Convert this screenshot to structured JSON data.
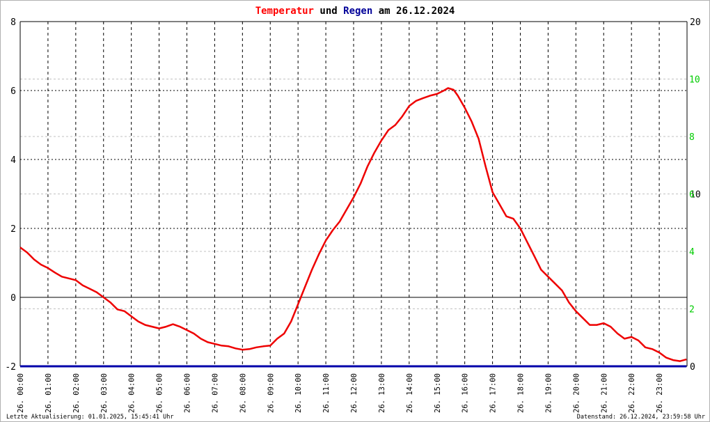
{
  "title": {
    "part1": "Temperatur",
    "part2": " und ",
    "part3": "Regen",
    "part4": " am 26.12.2024"
  },
  "colors": {
    "temperature": "#ee0000",
    "rain": "#0000aa",
    "title_temp": "#ff0000",
    "title_rain": "#000099",
    "right_axis_green": "#00cc00",
    "grid": "#000000",
    "zero_line": "#000000"
  },
  "footer": {
    "left": "Letzte Aktualisierung: 01.01.2025, 15:45:41 Uhr",
    "right": "Datenstand: 26.12.2024, 23:59:58 Uhr"
  },
  "chart_data": {
    "type": "line",
    "title": "Temperatur und Regen am 26.12.2024",
    "x_tick_labels": [
      "26. 00:00",
      "26. 01:00",
      "26. 02:00",
      "26. 03:00",
      "26. 04:00",
      "26. 05:00",
      "26. 06:00",
      "26. 07:00",
      "26. 08:00",
      "26. 09:00",
      "26. 10:00",
      "26. 11:00",
      "26. 12:00",
      "26. 13:00",
      "26. 14:00",
      "26. 15:00",
      "26. 16:00",
      "26. 17:00",
      "26. 18:00",
      "26. 19:00",
      "26. 20:00",
      "26. 21:00",
      "26. 22:00",
      "26. 23:00"
    ],
    "y_left": {
      "min": -2,
      "max": 8,
      "ticks": [
        -2,
        0,
        2,
        4,
        6,
        8
      ]
    },
    "y_right_black": {
      "min": 0,
      "max": 20,
      "ticks": [
        0,
        10,
        20
      ]
    },
    "y_right_green": {
      "min": 0,
      "max": 12,
      "ticks": [
        0,
        2,
        4,
        6,
        8,
        10
      ]
    },
    "grid": true,
    "series": [
      {
        "name": "Temperatur",
        "color": "#ee0000",
        "axis": "left",
        "x_hours": [
          0,
          0.25,
          0.5,
          0.75,
          1,
          1.25,
          1.5,
          1.75,
          2,
          2.25,
          2.5,
          2.75,
          3,
          3.25,
          3.5,
          3.75,
          4,
          4.25,
          4.5,
          4.75,
          5,
          5.25,
          5.5,
          5.75,
          6,
          6.25,
          6.5,
          6.75,
          7,
          7.25,
          7.5,
          7.75,
          8,
          8.25,
          8.5,
          8.75,
          9,
          9.25,
          9.5,
          9.75,
          10,
          10.25,
          10.5,
          10.75,
          11,
          11.25,
          11.5,
          11.75,
          12,
          12.25,
          12.5,
          12.75,
          13,
          13.25,
          13.5,
          13.75,
          14,
          14.25,
          14.5,
          14.75,
          15,
          15.25,
          15.4,
          15.6,
          15.75,
          16,
          16.25,
          16.5,
          16.75,
          17,
          17.25,
          17.5,
          17.75,
          18,
          18.25,
          18.5,
          18.75,
          19,
          19.25,
          19.5,
          19.75,
          20,
          20.25,
          20.5,
          20.75,
          21,
          21.25,
          21.5,
          21.75,
          22,
          22.25,
          22.5,
          22.75,
          23,
          23.25,
          23.5,
          23.75,
          23.98
        ],
        "values": [
          1.45,
          1.3,
          1.1,
          0.95,
          0.85,
          0.72,
          0.6,
          0.55,
          0.5,
          0.35,
          0.25,
          0.15,
          0.0,
          -0.15,
          -0.35,
          -0.4,
          -0.55,
          -0.7,
          -0.8,
          -0.85,
          -0.9,
          -0.85,
          -0.78,
          -0.85,
          -0.95,
          -1.05,
          -1.2,
          -1.3,
          -1.35,
          -1.4,
          -1.42,
          -1.48,
          -1.52,
          -1.5,
          -1.45,
          -1.42,
          -1.4,
          -1.2,
          -1.05,
          -0.7,
          -0.2,
          0.3,
          0.8,
          1.25,
          1.65,
          1.95,
          2.2,
          2.55,
          2.9,
          3.3,
          3.8,
          4.2,
          4.55,
          4.85,
          5.0,
          5.25,
          5.55,
          5.7,
          5.78,
          5.85,
          5.9,
          6.0,
          6.07,
          6.02,
          5.85,
          5.5,
          5.1,
          4.6,
          3.8,
          3.05,
          2.7,
          2.35,
          2.28,
          2.0,
          1.6,
          1.2,
          0.8,
          0.6,
          0.4,
          0.2,
          -0.15,
          -0.4,
          -0.6,
          -0.8,
          -0.8,
          -0.75,
          -0.85,
          -1.05,
          -1.2,
          -1.15,
          -1.25,
          -1.45,
          -1.5,
          -1.6,
          -1.75,
          -1.82,
          -1.85,
          -1.8
        ]
      },
      {
        "name": "Regen",
        "color": "#0000aa",
        "axis": "right",
        "x_hours": [
          0,
          23.98
        ],
        "values": [
          0,
          0
        ]
      }
    ]
  }
}
